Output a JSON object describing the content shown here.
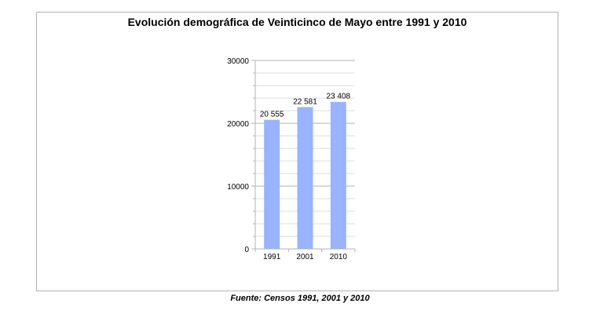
{
  "chart_data": {
    "type": "bar",
    "title": "Evolución demográfica de Veinticinco de Mayo entre 1991 y 2010",
    "categories": [
      "1991",
      "2001",
      "2010"
    ],
    "values": [
      20555,
      22581,
      23408
    ],
    "data_labels": [
      "20 555",
      "22 581",
      "23 408"
    ],
    "xlabel": "",
    "ylabel": "",
    "ylim": [
      0,
      30000
    ],
    "yticks": [
      0,
      10000,
      20000,
      30000
    ],
    "ytick_labels": [
      "0",
      "10000",
      "20000",
      "30000"
    ],
    "grid": true,
    "legend": "none",
    "bar_color": "#99b3ff"
  },
  "caption": "Fuente: Censos 1991, 2001 y 2010"
}
